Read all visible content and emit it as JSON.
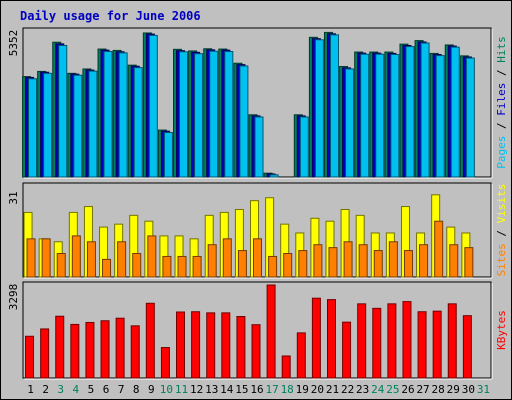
{
  "chart_data": {
    "type": "bar",
    "title": "Daily usage for June 2006",
    "categories": [
      "1",
      "2",
      "3",
      "4",
      "5",
      "6",
      "7",
      "8",
      "9",
      "10",
      "11",
      "12",
      "13",
      "14",
      "15",
      "16",
      "17",
      "18",
      "19",
      "20",
      "21",
      "22",
      "23",
      "24",
      "25",
      "26",
      "27",
      "28",
      "29",
      "30",
      "31"
    ],
    "weekend_days": [
      "3",
      "4",
      "10",
      "11",
      "17",
      "18",
      "24",
      "25",
      "31"
    ],
    "panels": [
      {
        "id": "top",
        "max_label": "5352",
        "ylim": [
          0,
          5352
        ],
        "legend": [
          {
            "text": "Pages",
            "color": "#00c0f0"
          },
          {
            "text": " / ",
            "color": "#000000"
          },
          {
            "text": "Files",
            "color": "#0000c0"
          },
          {
            "text": " / ",
            "color": "#000000"
          },
          {
            "text": "Hits",
            "color": "#00805c"
          }
        ],
        "series": [
          {
            "name": "Hits",
            "color": "#00805c",
            "values": [
              3680,
              3870,
              4940,
              3800,
              3960,
              4690,
              4640,
              4100,
              5280,
              1720,
              4680,
              4620,
              4700,
              4690,
              4170,
              2280,
              140,
              0,
              2280,
              5120,
              5300,
              4050,
              4580,
              4580,
              4580,
              4870,
              5000,
              4530,
              4840,
              4440,
              0
            ]
          },
          {
            "name": "Files",
            "color": "#0000c0",
            "values": [
              3650,
              3840,
              4880,
              3770,
              3920,
              4650,
              4590,
              4060,
              5240,
              1680,
              4630,
              4570,
              4660,
              4650,
              4120,
              2240,
              110,
              0,
              2240,
              5070,
              5250,
              4000,
              4540,
              4540,
              4530,
              4820,
              4950,
              4490,
              4800,
              4400,
              0
            ]
          },
          {
            "name": "Pages",
            "color": "#00c0f0",
            "values": [
              3600,
              3800,
              4820,
              3730,
              3880,
              4600,
              4550,
              4010,
              5190,
              1630,
              4590,
              4520,
              4610,
              4600,
              4070,
              2200,
              80,
              0,
              2200,
              5030,
              5210,
              3960,
              4500,
              4500,
              4490,
              4780,
              4910,
              4450,
              4760,
              4360,
              0
            ]
          }
        ]
      },
      {
        "id": "middle",
        "max_label": "31",
        "ylim": [
          0,
          31
        ],
        "legend": [
          {
            "text": "Sites",
            "color": "#ff8000"
          },
          {
            "text": " / ",
            "color": "#000000"
          },
          {
            "text": "Visits",
            "color": "#ffff00"
          }
        ],
        "series": [
          {
            "name": "Visits",
            "color": "#ffff00",
            "values": [
              22,
              13,
              12,
              22,
              24,
              17,
              18,
              21,
              19,
              14,
              14,
              13,
              21,
              22,
              23,
              26,
              27,
              18,
              15,
              20,
              19,
              23,
              21,
              15,
              15,
              24,
              15,
              28,
              17,
              15,
              0
            ]
          },
          {
            "name": "Sites",
            "color": "#ff8000",
            "values": [
              13,
              13,
              8,
              14,
              12,
              6,
              12,
              8,
              14,
              7,
              7,
              7,
              11,
              13,
              9,
              13,
              7,
              8,
              9,
              11,
              10,
              12,
              11,
              9,
              12,
              9,
              11,
              19,
              11,
              10,
              0
            ]
          }
        ]
      },
      {
        "id": "bottom",
        "max_label": "3298",
        "ylim": [
          0,
          3298
        ],
        "legend": [
          {
            "text": "KBytes",
            "color": "#ff0000"
          }
        ],
        "series": [
          {
            "name": "KBytes",
            "color": "#ff0000",
            "values": [
              1480,
              1740,
              2190,
              1900,
              1970,
              2030,
              2120,
              1850,
              2650,
              1080,
              2340,
              2350,
              2310,
              2310,
              2180,
              1890,
              3298,
              780,
              1600,
              2830,
              2780,
              1980,
              2630,
              2470,
              2630,
              2710,
              2350,
              2370,
              2630,
              2210,
              0
            ]
          }
        ]
      }
    ]
  }
}
